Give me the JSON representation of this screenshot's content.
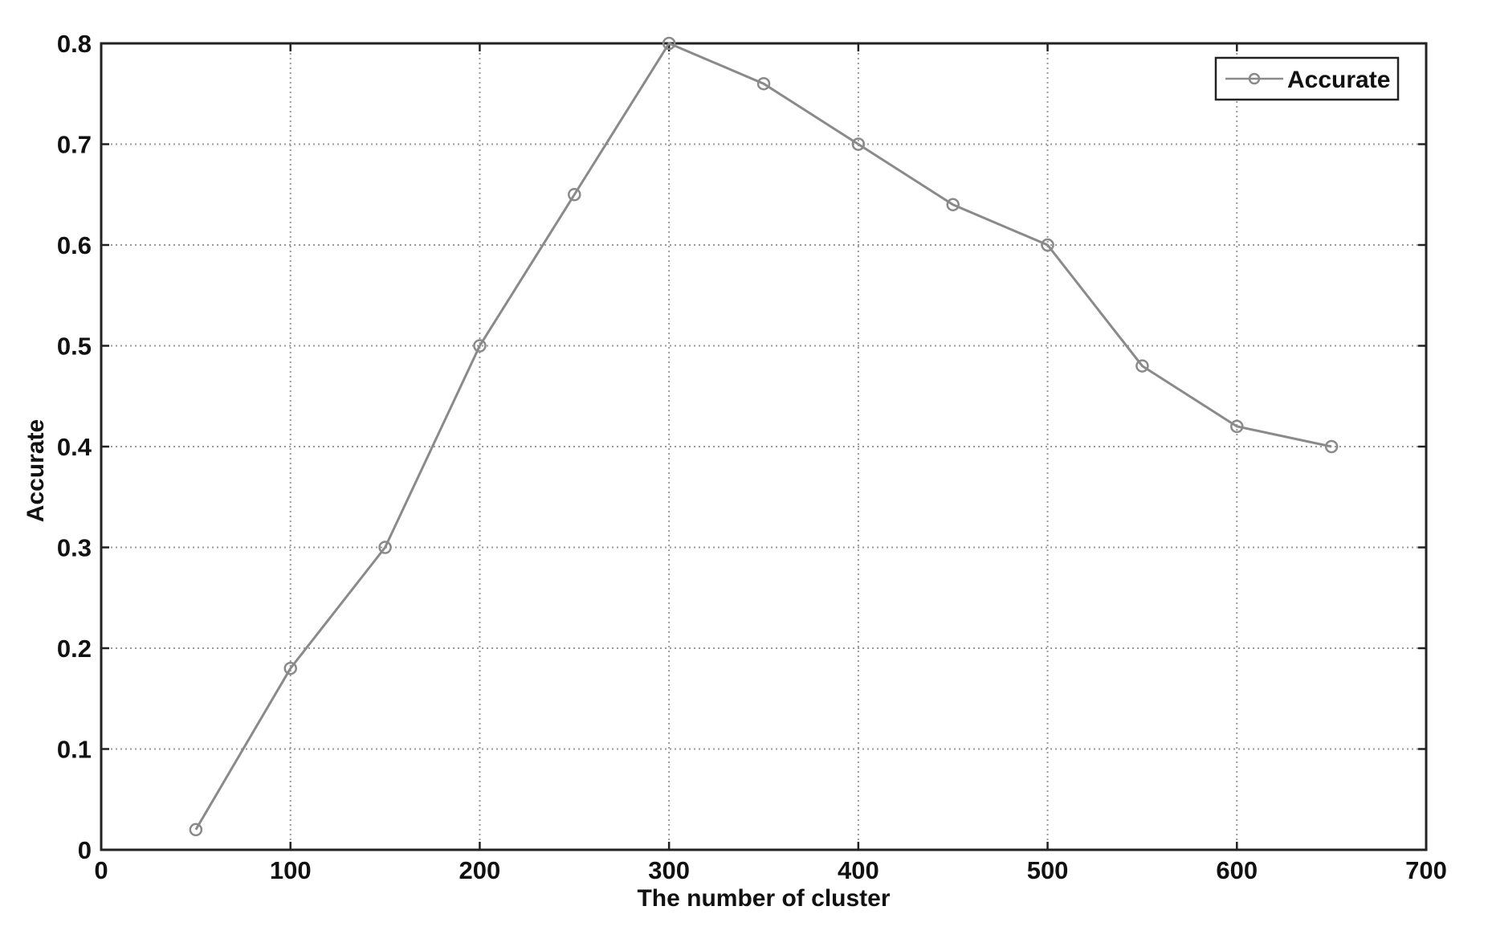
{
  "chart_data": {
    "type": "line",
    "title": "",
    "xlabel": "The number of cluster",
    "ylabel": "Accurate",
    "xlim": [
      0,
      700
    ],
    "ylim": [
      0,
      0.8
    ],
    "xticks": [
      0,
      100,
      200,
      300,
      400,
      500,
      600,
      700
    ],
    "yticks": [
      0,
      0.1,
      0.2,
      0.3,
      0.4,
      0.5,
      0.6,
      0.7,
      0.8
    ],
    "xtick_labels": [
      "0",
      "100",
      "200",
      "300",
      "400",
      "500",
      "600",
      "700"
    ],
    "ytick_labels": [
      "0",
      "0.1",
      "0.2",
      "0.3",
      "0.4",
      "0.5",
      "0.6",
      "0.7",
      "0.8"
    ],
    "grid": true,
    "legend_position": "top-right",
    "series": [
      {
        "name": "Accurate",
        "color": "#8a8a8a",
        "marker": "circle",
        "x": [
          50,
          100,
          150,
          200,
          250,
          300,
          350,
          400,
          450,
          500,
          550,
          600,
          650
        ],
        "y": [
          0.02,
          0.18,
          0.3,
          0.5,
          0.65,
          0.8,
          0.76,
          0.7,
          0.64,
          0.6,
          0.48,
          0.42,
          0.4
        ]
      }
    ]
  }
}
